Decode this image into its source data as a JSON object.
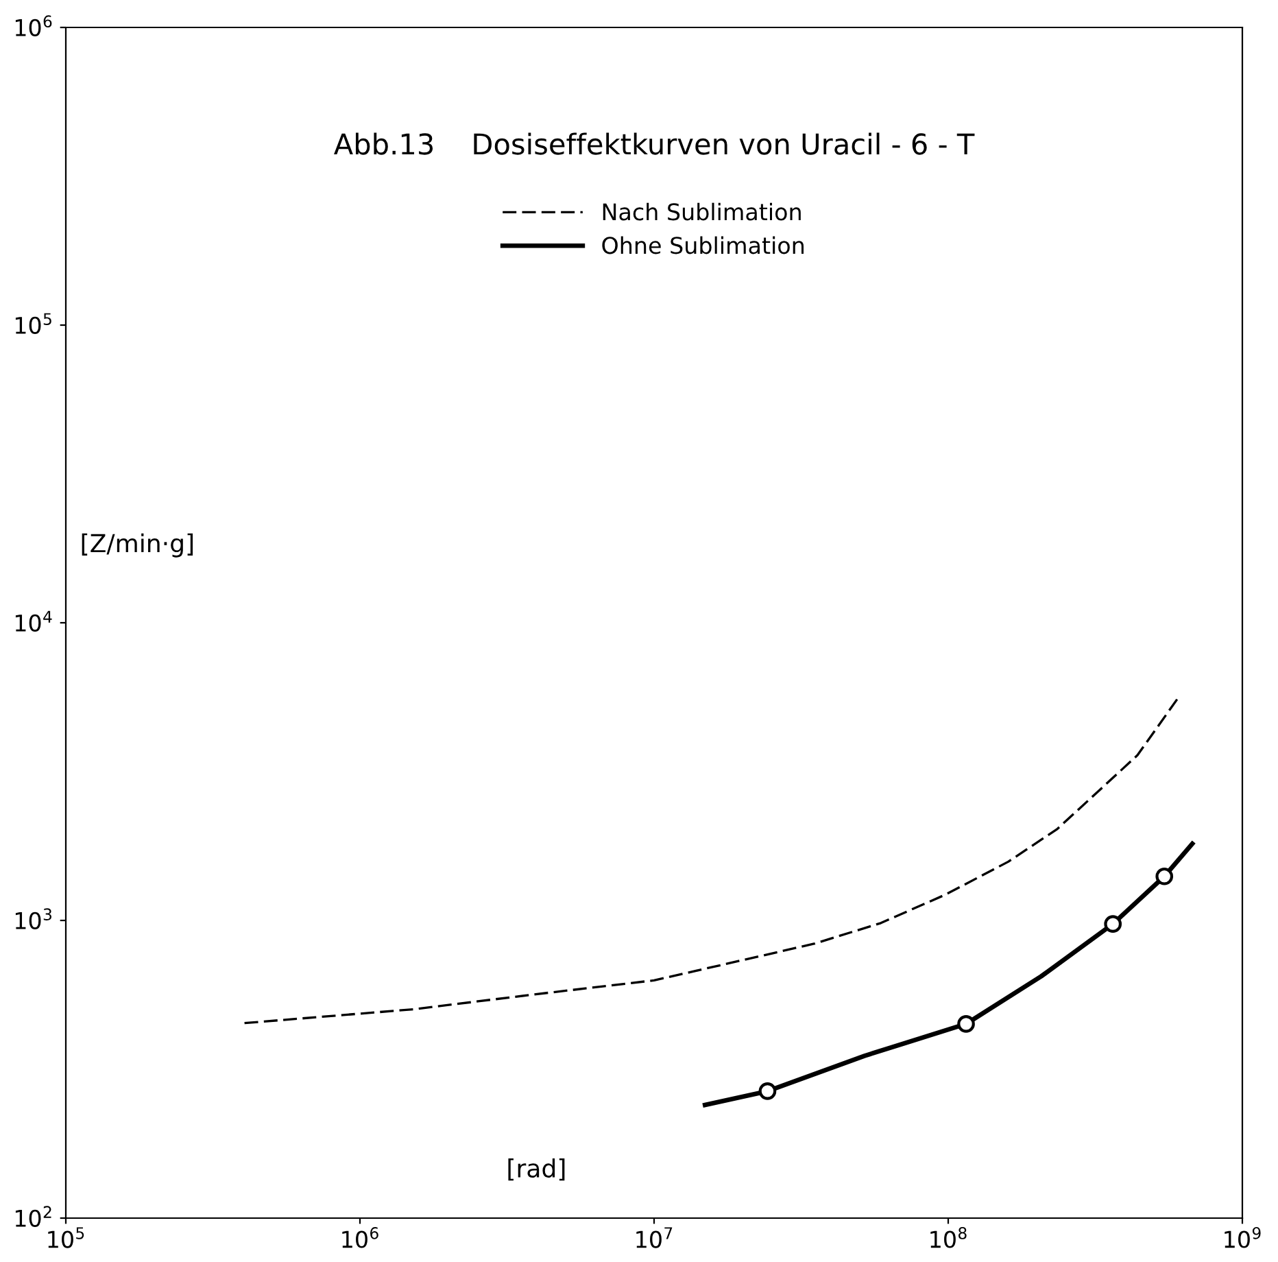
{
  "chart_data": {
    "type": "line",
    "title": "Abb.13    Dosiseffektkurven von Uracil - 6 - T",
    "xlabel": "[rad]",
    "ylabel": "[Z/min·g]",
    "log": "xy",
    "xlim": [
      100000,
      1000000000
    ],
    "ylim": [
      100,
      1000000
    ],
    "xticks": [
      {
        "value": 100000,
        "label": "10$^{5}$"
      },
      {
        "value": 1000000,
        "label": "10$^{6}$"
      },
      {
        "value": 10000000,
        "label": "10$^{7}$"
      },
      {
        "value": 100000000,
        "label": "10$^{8}$"
      },
      {
        "value": 1000000000,
        "label": "10$^{9}$"
      }
    ],
    "yticks": [
      {
        "value": 100,
        "label": "10$^{2}$"
      },
      {
        "value": 1000,
        "label": "10$^{3}$"
      },
      {
        "value": 10000,
        "label": "10$^{4}$"
      },
      {
        "value": 100000,
        "label": "10$^{5}$"
      },
      {
        "value": 1000000,
        "label": "10$^{6}$"
      }
    ],
    "grid": false,
    "legend": "top",
    "series": [
      {
        "name": "Nach Sublimation",
        "color": "#000000",
        "line_style": "dashed",
        "marker": "none",
        "x": [
          405000,
          1520000,
          3900000,
          10000000,
          35000000,
          59000000,
          98000000,
          160000000,
          235000000,
          440000000,
          600000000
        ],
        "values": [
          452,
          503,
          564,
          629,
          835,
          980,
          1222,
          1575,
          2030,
          3590,
          5530
        ]
      },
      {
        "name": "Ohne Sublimation",
        "color": "#000000",
        "line_style": "solid",
        "marker": "none",
        "x": [
          14900000,
          24300000,
          52000000,
          115000000,
          207000000,
          363000000,
          543000000,
          676000000
        ],
        "values": [
          240,
          267,
          351,
          449,
          649,
          973,
          1406,
          1810
        ]
      },
      {
        "type": "scatter",
        "color": "#000000",
        "marker": "circle",
        "x": [
          24300000,
          115000000,
          363000000,
          543000000
        ],
        "values": [
          267,
          449,
          973,
          1406
        ]
      }
    ]
  }
}
